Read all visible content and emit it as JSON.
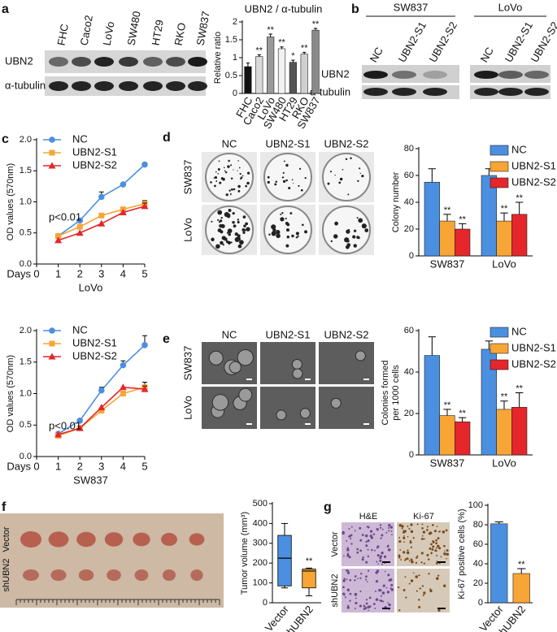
{
  "panels": {
    "a": {
      "letter": "a",
      "lanes": [
        "FHC",
        "Caco2",
        "LoVo",
        "SW480",
        "HT29",
        "RKO",
        "SW837"
      ],
      "rows": [
        "UBN2",
        "α-tubulin"
      ]
    },
    "b": {
      "letter": "b",
      "groups": [
        "SW837",
        "LoVo"
      ],
      "lanes": [
        [
          "NC",
          "UBN2-S1",
          "UBN2-S2"
        ],
        [
          "NC",
          "UBN2-S1",
          "UBN2-S2"
        ]
      ],
      "rows": [
        "UBN2",
        "α-tubulin"
      ]
    },
    "c": {
      "letter": "c"
    },
    "d": {
      "letter": "d",
      "columns": [
        "NC",
        "UBN2-S1",
        "UBN2-S2"
      ],
      "rows": [
        "SW837",
        "LoVo"
      ]
    },
    "e": {
      "letter": "e",
      "columns": [
        "NC",
        "UBN2-S1",
        "UBN2-S2"
      ],
      "rows": [
        "SW837",
        "LoVo"
      ]
    },
    "f": {
      "letter": "f",
      "rows": [
        "Vector",
        "shUBN2"
      ]
    },
    "g": {
      "letter": "g",
      "columns": [
        "H&E",
        "Ki-67"
      ],
      "rows": [
        "Vector",
        "shUBN2"
      ]
    }
  },
  "chart_data": [
    {
      "type": "bar",
      "title": "UBN2 / α-tubulin",
      "ylabel": "Relative ratio",
      "categories": [
        "FHC",
        "Caco2",
        "LoVo",
        "SW480",
        "HT29",
        "RKO",
        "SW837"
      ],
      "series": [
        {
          "values": [
            0.75,
            1.03,
            1.58,
            1.25,
            0.87,
            1.1,
            1.77
          ],
          "errors": [
            0.1,
            0.05,
            0.08,
            0.05,
            0.06,
            0.05,
            0.05
          ],
          "colors": [
            "#111111",
            "#d9d9d9",
            "#9a9a9a",
            "#f2f2f2",
            "#555555",
            "#cfcfcf",
            "#8a8a8a"
          ],
          "significance": [
            null,
            "**",
            "**",
            "**",
            "*",
            "**",
            "**"
          ]
        }
      ],
      "ylim": [
        0,
        2
      ],
      "yticks": [
        0,
        0.5,
        1,
        1.5,
        2
      ]
    },
    {
      "type": "line",
      "ylabel": "OD values (570nm)",
      "xlabel": "LoVo",
      "x_unit_label": "Days",
      "x": [
        1,
        2,
        3,
        4,
        5
      ],
      "xlim": [
        0,
        5
      ],
      "xticks": [
        0,
        1,
        2,
        3,
        4,
        5
      ],
      "ylim": [
        0,
        2
      ],
      "yticks": [
        {
          "value": 0,
          "label": "0.0"
        },
        0.5,
        {
          "value": 1,
          "label": "1.0"
        },
        1.5,
        {
          "value": 2,
          "label": "2.0"
        }
      ],
      "annotation": "p<0.01",
      "legend": "upper left",
      "series": [
        {
          "name": "NC",
          "color": "#4b8fe0",
          "marker": "circle",
          "values": [
            0.45,
            0.7,
            1.08,
            1.28,
            1.6
          ],
          "errors": [
            null,
            null,
            0.08,
            null,
            null
          ]
        },
        {
          "name": "UBN2-S1",
          "color": "#f7a534",
          "marker": "square",
          "values": [
            0.45,
            0.6,
            0.78,
            0.88,
            0.97
          ],
          "errors": [
            null,
            null,
            null,
            null,
            0.05
          ]
        },
        {
          "name": "UBN2-S2",
          "color": "#e5262b",
          "marker": "triangle",
          "values": [
            0.38,
            0.5,
            0.65,
            0.83,
            0.93
          ],
          "errors": [
            null,
            null,
            null,
            null,
            0.05
          ]
        }
      ]
    },
    {
      "type": "line",
      "ylabel": "OD values (570nm)",
      "xlabel": "SW837",
      "x_unit_label": "Days",
      "x": [
        1,
        2,
        3,
        4,
        5
      ],
      "xlim": [
        0,
        5
      ],
      "xticks": [
        0,
        1,
        2,
        3,
        4,
        5
      ],
      "ylim": [
        0,
        2
      ],
      "yticks": [
        {
          "value": 0,
          "label": "0.0"
        },
        0.5,
        {
          "value": 1,
          "label": "1.0"
        },
        1.5,
        {
          "value": 2,
          "label": "2.0"
        }
      ],
      "annotation": "p<0.01",
      "legend": "upper left",
      "series": [
        {
          "name": "NC",
          "color": "#4b8fe0",
          "marker": "circle",
          "values": [
            0.36,
            0.57,
            1.05,
            1.45,
            1.77
          ],
          "errors": [
            null,
            null,
            0.05,
            0.07,
            0.15
          ]
        },
        {
          "name": "UBN2-S1",
          "color": "#f7a534",
          "marker": "square",
          "values": [
            0.33,
            0.45,
            0.73,
            1.0,
            1.1
          ],
          "errors": [
            null,
            null,
            null,
            null,
            0.08
          ]
        },
        {
          "name": "UBN2-S2",
          "color": "#e5262b",
          "marker": "triangle",
          "values": [
            0.35,
            0.45,
            0.78,
            1.1,
            1.07
          ],
          "errors": [
            null,
            null,
            null,
            null,
            0.05
          ]
        }
      ]
    },
    {
      "type": "bar",
      "ylabel": "Colony number",
      "categories": [
        "SW837",
        "LoVo"
      ],
      "ylim": [
        0,
        80
      ],
      "yticks": [
        0,
        20,
        40,
        60,
        80
      ],
      "legend": "upper right",
      "series": [
        {
          "name": "NC",
          "color": "#4b8fe0",
          "values": [
            55,
            60
          ],
          "errors": [
            10,
            5
          ]
        },
        {
          "name": "UBN2-S1",
          "color": "#f7a534",
          "values": [
            26,
            26
          ],
          "errors": [
            5,
            6
          ],
          "significance": [
            "**",
            "**"
          ]
        },
        {
          "name": "UBN2-S2",
          "color": "#e5262b",
          "values": [
            20,
            31
          ],
          "errors": [
            4,
            9
          ],
          "significance": [
            "**",
            "**"
          ]
        }
      ]
    },
    {
      "type": "bar",
      "ylabel": [
        "Colonies formed",
        "per 1000 cells"
      ],
      "categories": [
        "SW837",
        "LoVo"
      ],
      "ylim": [
        0,
        60
      ],
      "yticks": [
        0,
        20,
        40,
        60
      ],
      "legend": "upper right",
      "series": [
        {
          "name": "NC",
          "color": "#4b8fe0",
          "values": [
            48,
            51
          ],
          "errors": [
            9,
            4
          ]
        },
        {
          "name": "UBN2-S1",
          "color": "#f7a534",
          "values": [
            19,
            22
          ],
          "errors": [
            3,
            4
          ],
          "significance": [
            "**",
            "**"
          ]
        },
        {
          "name": "UBN2-S2",
          "color": "#e5262b",
          "values": [
            16,
            23
          ],
          "errors": [
            2,
            7
          ],
          "significance": [
            "**",
            "**"
          ]
        }
      ]
    },
    {
      "type": "box",
      "ylabel": "Tumor volume (mm³)",
      "ylim": [
        0,
        500
      ],
      "yticks": [
        0,
        100,
        200,
        300,
        400,
        500
      ],
      "boxes": [
        {
          "name": "Vector",
          "color": "#4b8fe0",
          "min": 75,
          "q1": 85,
          "median": 225,
          "q3": 340,
          "max": 400
        },
        {
          "name": "shUBN2",
          "color": "#f7a534",
          "min": 35,
          "q1": 75,
          "median": 160,
          "q3": 170,
          "max": 175,
          "significance": "**"
        }
      ]
    },
    {
      "type": "bar",
      "ylabel": "Ki-67 positive cells (%)",
      "categories": [
        "Vector",
        "shUBN2"
      ],
      "ylim": [
        0,
        100
      ],
      "yticks": [
        0,
        20,
        40,
        60,
        80,
        100
      ],
      "series": [
        {
          "values": [
            81,
            30
          ],
          "errors": [
            2,
            5
          ],
          "colors": [
            "#4b8fe0",
            "#f7a534"
          ],
          "significance": [
            null,
            "**"
          ]
        }
      ]
    }
  ]
}
